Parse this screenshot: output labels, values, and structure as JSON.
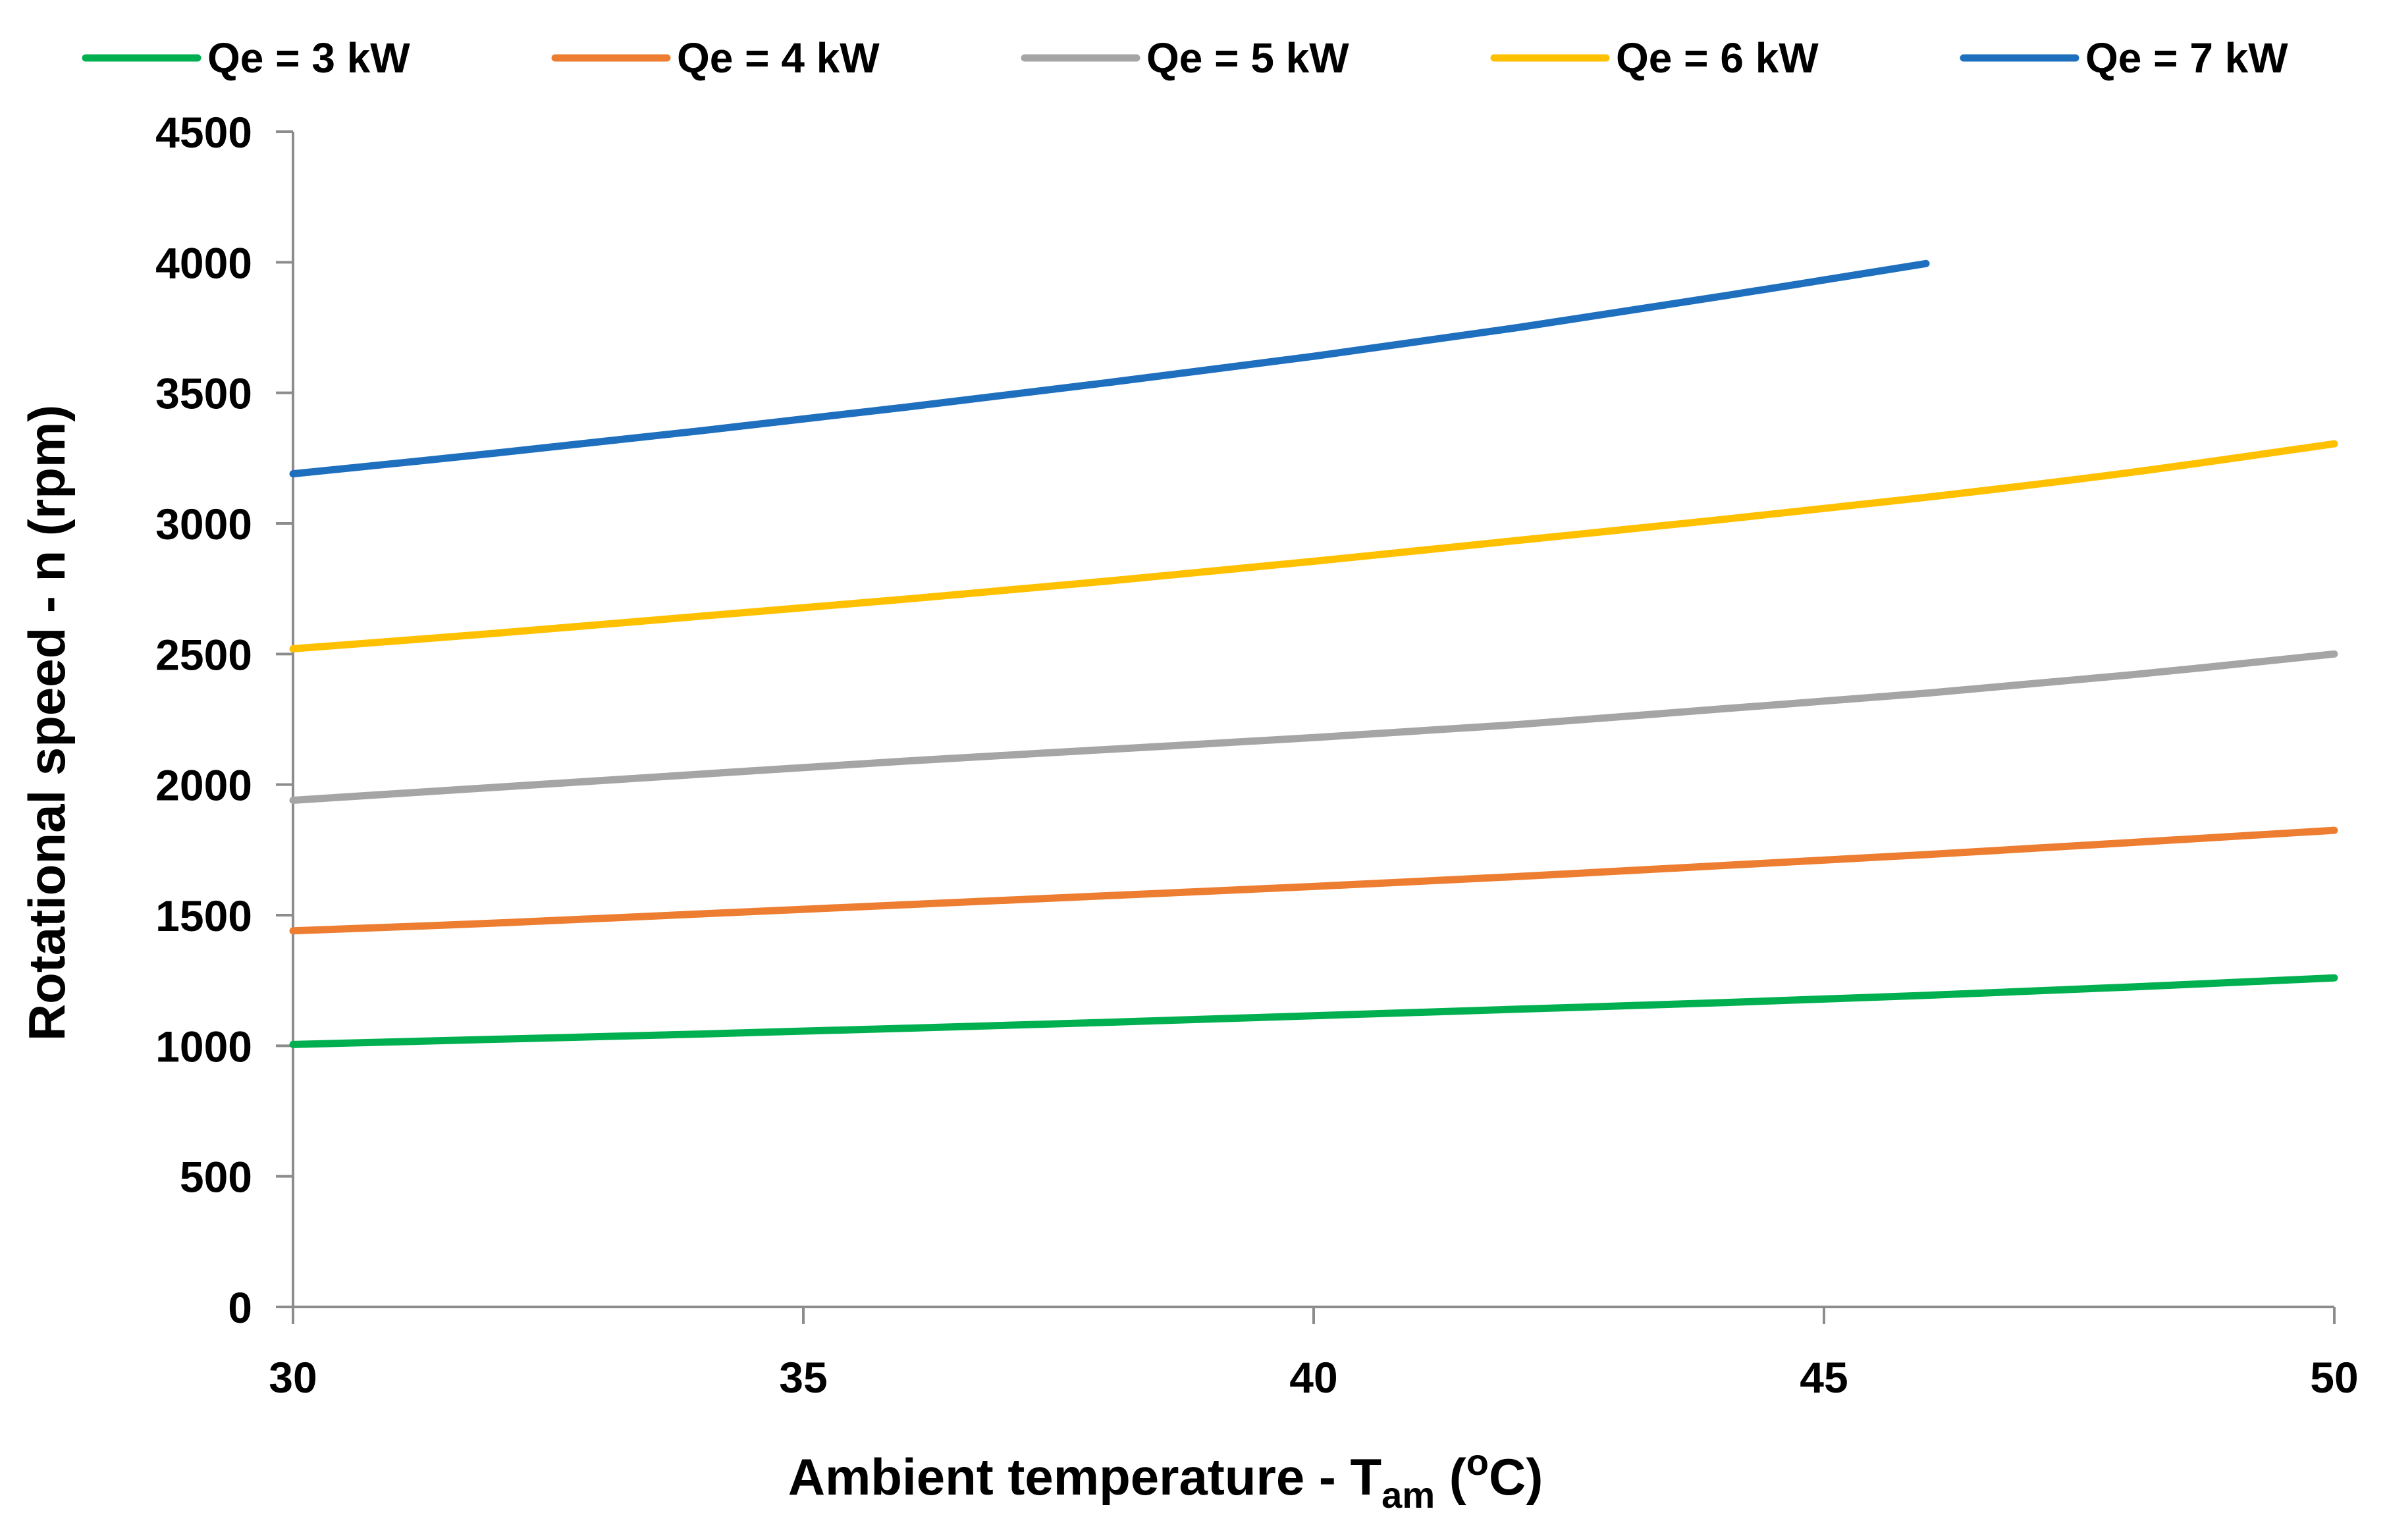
{
  "chart_data": {
    "type": "line",
    "title": "",
    "xlabel": {
      "main": "Ambient temperature - T",
      "subscript": "am",
      "open": " (",
      "superscript": "o",
      "unit": "C)"
    },
    "ylabel": "Rotational speed - n (rpm)",
    "xlim": [
      30,
      50
    ],
    "ylim": [
      0,
      4500
    ],
    "x_ticks": [
      30,
      35,
      40,
      45,
      50
    ],
    "y_ticks": [
      0,
      500,
      1000,
      1500,
      2000,
      2500,
      3000,
      3500,
      4000,
      4500
    ],
    "grid": false,
    "legend_position": "top",
    "series": [
      {
        "name": "Qe = 3 kW",
        "color": "#00b050",
        "x": [
          30,
          32,
          34,
          36,
          38,
          40,
          42,
          44,
          46,
          48,
          50
        ],
        "y": [
          1005,
          1025,
          1045,
          1067,
          1090,
          1115,
          1140,
          1165,
          1193,
          1225,
          1260
        ]
      },
      {
        "name": "Qe = 4 kW",
        "color": "#ed7d31",
        "x": [
          30,
          32,
          34,
          36,
          38,
          40,
          42,
          44,
          46,
          48,
          50
        ],
        "y": [
          1440,
          1470,
          1505,
          1540,
          1575,
          1610,
          1648,
          1690,
          1732,
          1778,
          1825
        ]
      },
      {
        "name": "Qe = 5 kW",
        "color": "#a5a5a5",
        "x": [
          30,
          32,
          34,
          36,
          38,
          40,
          42,
          44,
          46,
          48,
          50
        ],
        "y": [
          1940,
          1990,
          2040,
          2090,
          2135,
          2180,
          2230,
          2290,
          2350,
          2420,
          2500
        ]
      },
      {
        "name": "Qe = 6 kW",
        "color": "#ffc000",
        "x": [
          30,
          32,
          34,
          36,
          38,
          40,
          42,
          44,
          46,
          48,
          50
        ],
        "y": [
          2520,
          2580,
          2645,
          2710,
          2780,
          2855,
          2935,
          3015,
          3100,
          3195,
          3305
        ]
      },
      {
        "name": "Qe = 7 kW",
        "color": "#1f6fbf",
        "x": [
          30,
          32,
          34,
          36,
          38,
          40,
          42,
          44,
          46
        ],
        "y": [
          3190,
          3270,
          3355,
          3445,
          3540,
          3640,
          3750,
          3870,
          3995
        ]
      }
    ]
  }
}
